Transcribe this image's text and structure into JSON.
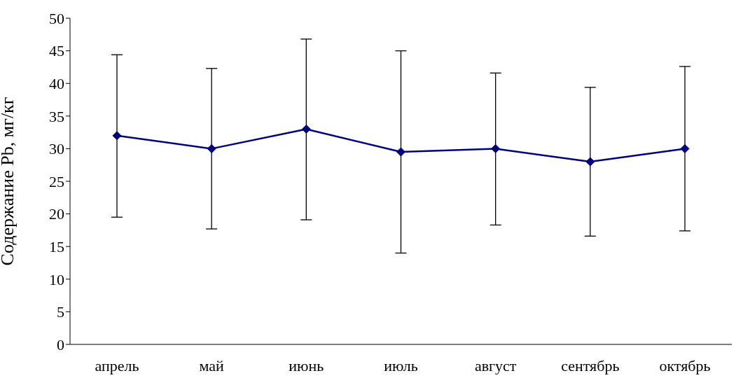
{
  "chart_data": {
    "type": "line",
    "ylabel": "Содержание Pb, мг/кг",
    "categories": [
      "апрель",
      "май",
      "июнь",
      "июль",
      "август",
      "сентябрь",
      "октябрь"
    ],
    "series": [
      {
        "color": "#000080",
        "values": [
          32.0,
          30.0,
          33.0,
          29.5,
          30.0,
          28.0,
          30.0
        ],
        "errors": [
          [
            19.5,
            44.4
          ],
          [
            17.7,
            42.3
          ],
          [
            19.1,
            46.8
          ],
          [
            14.0,
            45.0
          ],
          [
            18.3,
            41.6
          ],
          [
            16.6,
            39.4
          ],
          [
            17.4,
            42.6
          ]
        ]
      }
    ],
    "ylim": [
      0,
      50
    ],
    "yticks": [
      0,
      5,
      10,
      15,
      20,
      25,
      30,
      35,
      40,
      45,
      50
    ],
    "grid": false,
    "legend": false,
    "marker": "diamond",
    "line_style": "solid"
  }
}
